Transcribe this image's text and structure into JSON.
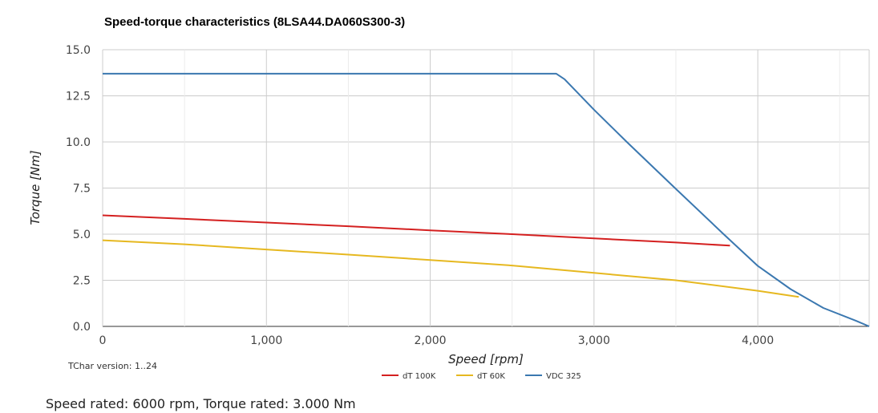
{
  "chart_data": {
    "type": "line",
    "title": "Speed-torque characteristics (8LSA44.DA060S300-3)",
    "xlabel": "Speed [rpm]",
    "ylabel": "Torque [Nm]",
    "xlim": [
      0,
      4680
    ],
    "ylim": [
      0,
      15
    ],
    "x_ticks": [
      0,
      1000,
      2000,
      3000,
      4000
    ],
    "x_tick_labels": [
      "0",
      "1,000",
      "2,000",
      "3,000",
      "4,000"
    ],
    "y_ticks": [
      0,
      2.5,
      5,
      7.5,
      10,
      12.5,
      15
    ],
    "y_tick_labels": [
      "0.0",
      "2.5",
      "5.0",
      "7.5",
      "10.0",
      "12.5",
      "15.0"
    ],
    "minor_x_gridlines": [
      500,
      1500,
      2500,
      3500,
      4500
    ],
    "grid": true,
    "legend_placement": "bottom-center",
    "series": [
      {
        "name": "dT 100K",
        "color": "#d42020",
        "points": [
          [
            0,
            6.02
          ],
          [
            500,
            5.83
          ],
          [
            1000,
            5.63
          ],
          [
            1500,
            5.43
          ],
          [
            2000,
            5.21
          ],
          [
            2500,
            5.0
          ],
          [
            3000,
            4.77
          ],
          [
            3500,
            4.55
          ],
          [
            3830,
            4.38
          ]
        ]
      },
      {
        "name": "dT 60K",
        "color": "#e6b820",
        "points": [
          [
            0,
            4.67
          ],
          [
            500,
            4.45
          ],
          [
            1000,
            4.17
          ],
          [
            1500,
            3.89
          ],
          [
            2000,
            3.6
          ],
          [
            2500,
            3.3
          ],
          [
            3000,
            2.9
          ],
          [
            3500,
            2.5
          ],
          [
            4000,
            1.93
          ],
          [
            4250,
            1.6
          ]
        ]
      },
      {
        "name": "VDC 325",
        "color": "#3b78b0",
        "points": [
          [
            0,
            13.7
          ],
          [
            2770,
            13.7
          ],
          [
            2820,
            13.4
          ],
          [
            3000,
            11.75
          ],
          [
            3200,
            10.0
          ],
          [
            3500,
            7.45
          ],
          [
            3800,
            4.93
          ],
          [
            4000,
            3.28
          ],
          [
            4200,
            2.02
          ],
          [
            4400,
            1.0
          ],
          [
            4600,
            0.3
          ],
          [
            4680,
            0.0
          ]
        ]
      }
    ]
  },
  "chart_note": "TChar version: 1..24",
  "footer_text": "Speed rated: 6000 rpm, Torque rated: 3.000 Nm"
}
